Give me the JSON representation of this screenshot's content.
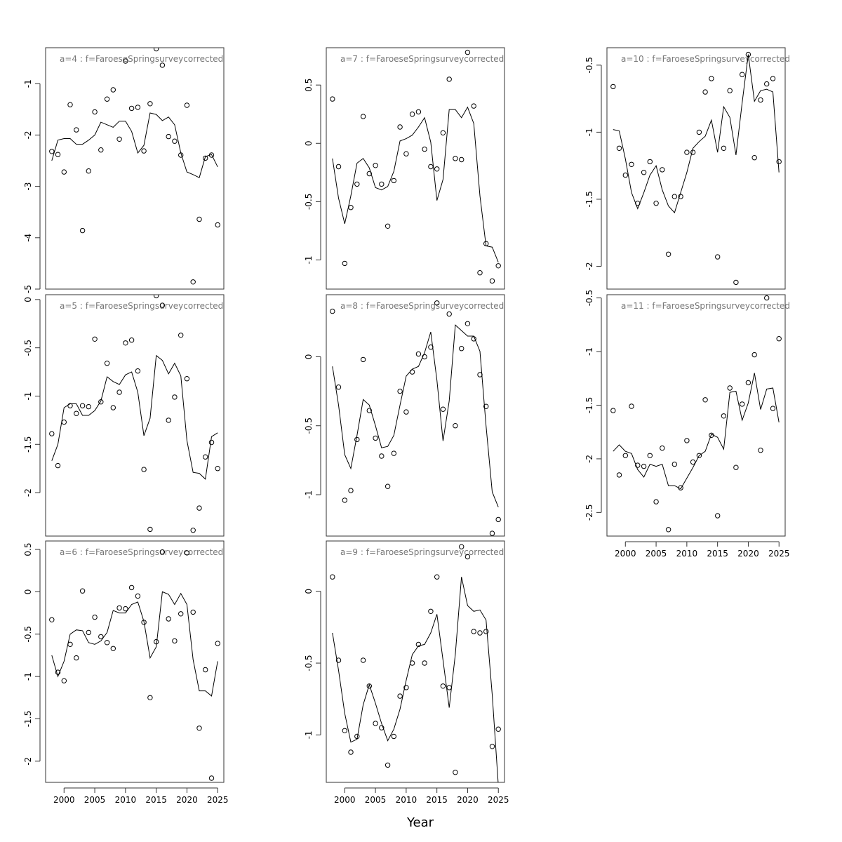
{
  "xlabel": "Year",
  "chart_data": [
    {
      "type": "line",
      "title": "a=4  :  f=FaroeseSpringsurveycorrected",
      "xlim": [
        1997,
        2026
      ],
      "ylim": [
        -5.0,
        -0.3
      ],
      "xticks": [
        2000,
        2005,
        2010,
        2015,
        2020,
        2025
      ],
      "yticks": [
        -5,
        -4,
        -3,
        -2,
        -1
      ],
      "fitted": {
        "x": [
          1998,
          1999,
          2000,
          2001,
          2002,
          2003,
          2004,
          2005,
          2006,
          2007,
          2008,
          2009,
          2010,
          2011,
          2012,
          2013,
          2014,
          2015,
          2016,
          2017,
          2018,
          2019,
          2020,
          2021,
          2022,
          2023,
          2024,
          2025
        ],
        "y": [
          -2.5,
          -2.1,
          -2.07,
          -2.07,
          -2.18,
          -2.18,
          -2.1,
          -2.0,
          -1.75,
          -1.8,
          -1.85,
          -1.73,
          -1.73,
          -1.93,
          -2.35,
          -2.2,
          -1.57,
          -1.6,
          -1.72,
          -1.65,
          -1.8,
          -2.35,
          -2.72,
          -2.77,
          -2.83,
          -2.42,
          -2.38,
          -2.62
        ]
      },
      "observed": {
        "x": [
          1998,
          1999,
          2000,
          2001,
          2002,
          2003,
          2004,
          2005,
          2006,
          2007,
          2008,
          2009,
          2010,
          2011,
          2012,
          2013,
          2014,
          2015,
          2016,
          2017,
          2018,
          2019,
          2020,
          2021,
          2022,
          2023,
          2024,
          2025
        ],
        "y": [
          -2.32,
          -2.38,
          -2.72,
          -1.41,
          -1.9,
          -3.86,
          -2.7,
          -1.55,
          -2.29,
          -1.3,
          -1.12,
          -2.08,
          -0.56,
          -1.48,
          -1.46,
          -2.31,
          -1.39,
          -0.32,
          -0.64,
          -2.03,
          -2.12,
          -2.39,
          -1.42,
          -4.86,
          -3.64,
          -2.45,
          -2.39,
          -3.75
        ]
      }
    },
    {
      "type": "line",
      "title": "a=5  :  f=FaroeseSpringsurveycorrected",
      "xlim": [
        1997,
        2026
      ],
      "ylim": [
        -2.45,
        0.05
      ],
      "xticks": [
        2000,
        2005,
        2010,
        2015,
        2020,
        2025
      ],
      "yticks": [
        -2.0,
        -1.5,
        -1.0,
        -0.5,
        0.0
      ],
      "fitted": {
        "x": [
          1998,
          1999,
          2000,
          2001,
          2002,
          2003,
          2004,
          2005,
          2006,
          2007,
          2008,
          2009,
          2010,
          2011,
          2012,
          2013,
          2014,
          2015,
          2016,
          2017,
          2018,
          2019,
          2020,
          2021,
          2022,
          2023,
          2024,
          2025
        ],
        "y": [
          -1.67,
          -1.5,
          -1.12,
          -1.08,
          -1.08,
          -1.2,
          -1.2,
          -1.15,
          -1.05,
          -0.8,
          -0.85,
          -0.88,
          -0.78,
          -0.75,
          -0.96,
          -1.41,
          -1.23,
          -0.58,
          -0.63,
          -0.77,
          -0.66,
          -0.79,
          -1.46,
          -1.79,
          -1.8,
          -1.86,
          -1.42,
          -1.38
        ]
      },
      "observed": {
        "x": [
          1998,
          1999,
          2000,
          2001,
          2002,
          2003,
          2004,
          2005,
          2006,
          2007,
          2008,
          2009,
          2010,
          2011,
          2012,
          2013,
          2014,
          2015,
          2016,
          2017,
          2018,
          2019,
          2020,
          2021,
          2022,
          2023,
          2024,
          2025
        ],
        "y": [
          -1.39,
          -1.72,
          -1.27,
          -1.1,
          -1.18,
          -1.1,
          -1.11,
          -0.41,
          -1.06,
          -0.66,
          -1.12,
          -0.96,
          -0.45,
          -0.42,
          -0.74,
          -1.76,
          -2.38,
          0.04,
          -0.06,
          -1.25,
          -1.01,
          -0.37,
          -0.82,
          -2.39,
          -2.16,
          -1.63,
          -1.48,
          -1.75
        ]
      }
    },
    {
      "type": "line",
      "title": "a=6  :  f=FaroeseSpringsurveycorrected",
      "xlim": [
        1997,
        2026
      ],
      "ylim": [
        -2.25,
        0.6
      ],
      "xticks": [
        2000,
        2005,
        2010,
        2015,
        2020,
        2025
      ],
      "yticks": [
        -2.0,
        -1.5,
        -1.0,
        -0.5,
        0.0,
        0.5
      ],
      "fitted": {
        "x": [
          1998,
          1999,
          2000,
          2001,
          2002,
          2003,
          2004,
          2005,
          2006,
          2007,
          2008,
          2009,
          2010,
          2011,
          2012,
          2013,
          2014,
          2015,
          2016,
          2017,
          2018,
          2019,
          2020,
          2021,
          2022,
          2023,
          2024,
          2025
        ],
        "y": [
          -0.75,
          -1.0,
          -0.82,
          -0.5,
          -0.45,
          -0.46,
          -0.6,
          -0.62,
          -0.58,
          -0.48,
          -0.22,
          -0.25,
          -0.25,
          -0.15,
          -0.12,
          -0.35,
          -0.78,
          -0.65,
          0.0,
          -0.03,
          -0.15,
          -0.02,
          -0.15,
          -0.8,
          -1.17,
          -1.17,
          -1.23,
          -0.82
        ]
      },
      "observed": {
        "x": [
          1998,
          1999,
          2000,
          2001,
          2002,
          2003,
          2004,
          2005,
          2006,
          2007,
          2008,
          2009,
          2010,
          2011,
          2012,
          2013,
          2014,
          2015,
          2016,
          2017,
          2018,
          2019,
          2020,
          2021,
          2022,
          2023,
          2024,
          2025
        ],
        "y": [
          -0.33,
          -0.95,
          -1.05,
          -0.62,
          -0.78,
          0.01,
          -0.48,
          -0.3,
          -0.53,
          -0.6,
          -0.67,
          -0.19,
          -0.2,
          0.05,
          -0.05,
          -0.36,
          -1.25,
          -0.59,
          0.47,
          -0.32,
          -0.58,
          -0.26,
          0.46,
          -0.24,
          -1.61,
          -0.92,
          -2.2,
          -0.61
        ]
      }
    },
    {
      "type": "line",
      "title": "a=7  :  f=FaroeseSpringsurveycorrected",
      "xlim": [
        1997,
        2026
      ],
      "ylim": [
        -1.25,
        0.82
      ],
      "xticks": [
        2000,
        2005,
        2010,
        2015,
        2020,
        2025
      ],
      "yticks": [
        -1.0,
        -0.5,
        0.0,
        0.5
      ],
      "fitted": {
        "x": [
          1998,
          1999,
          2000,
          2001,
          2002,
          2003,
          2004,
          2005,
          2006,
          2007,
          2008,
          2009,
          2010,
          2011,
          2012,
          2013,
          2014,
          2015,
          2016,
          2017,
          2018,
          2019,
          2020,
          2021,
          2022,
          2023,
          2024,
          2025
        ],
        "y": [
          -0.13,
          -0.47,
          -0.69,
          -0.45,
          -0.17,
          -0.13,
          -0.21,
          -0.38,
          -0.4,
          -0.37,
          -0.24,
          0.02,
          0.04,
          0.07,
          0.14,
          0.22,
          0.01,
          -0.49,
          -0.31,
          0.29,
          0.29,
          0.22,
          0.31,
          0.17,
          -0.45,
          -0.88,
          -0.89,
          -1.02
        ]
      },
      "observed": {
        "x": [
          1998,
          1999,
          2000,
          2001,
          2002,
          2003,
          2004,
          2005,
          2006,
          2007,
          2008,
          2009,
          2010,
          2011,
          2012,
          2013,
          2014,
          2015,
          2016,
          2017,
          2018,
          2019,
          2020,
          2021,
          2022,
          2023,
          2024,
          2025
        ],
        "y": [
          0.38,
          -0.2,
          -1.03,
          -0.55,
          -0.35,
          0.23,
          -0.26,
          -0.19,
          -0.35,
          -0.71,
          -0.32,
          0.14,
          -0.09,
          0.25,
          0.27,
          -0.05,
          -0.2,
          -0.22,
          0.09,
          0.55,
          -0.13,
          -0.14,
          0.78,
          0.32,
          -1.11,
          -0.86,
          -1.18,
          -1.05
        ]
      }
    },
    {
      "type": "line",
      "title": "a=8  :  f=FaroeseSpringsurveycorrected",
      "xlim": [
        1997,
        2026
      ],
      "ylim": [
        -1.3,
        0.45
      ],
      "xticks": [
        2000,
        2005,
        2010,
        2015,
        2020,
        2025
      ],
      "yticks": [
        -1.0,
        -0.5,
        0.0
      ],
      "fitted": {
        "x": [
          1998,
          1999,
          2000,
          2001,
          2002,
          2003,
          2004,
          2005,
          2006,
          2007,
          2008,
          2009,
          2010,
          2011,
          2012,
          2013,
          2014,
          2015,
          2016,
          2017,
          2018,
          2019,
          2020,
          2021,
          2022,
          2023,
          2024,
          2025
        ],
        "y": [
          -0.07,
          -0.35,
          -0.71,
          -0.81,
          -0.57,
          -0.31,
          -0.35,
          -0.5,
          -0.66,
          -0.65,
          -0.57,
          -0.35,
          -0.14,
          -0.09,
          -0.07,
          0.03,
          0.18,
          -0.17,
          -0.61,
          -0.32,
          0.23,
          0.19,
          0.15,
          0.15,
          0.04,
          -0.5,
          -0.98,
          -1.09
        ]
      },
      "observed": {
        "x": [
          1998,
          1999,
          2000,
          2001,
          2002,
          2003,
          2004,
          2005,
          2006,
          2007,
          2008,
          2009,
          2010,
          2011,
          2012,
          2013,
          2014,
          2015,
          2016,
          2017,
          2018,
          2019,
          2020,
          2021,
          2022,
          2023,
          2024,
          2025
        ],
        "y": [
          0.33,
          -0.22,
          -1.04,
          -0.97,
          -0.6,
          -0.02,
          -0.39,
          -0.59,
          -0.72,
          -0.94,
          -0.7,
          -0.25,
          -0.4,
          -0.11,
          0.02,
          0.0,
          0.07,
          0.39,
          -0.38,
          0.31,
          -0.5,
          0.06,
          0.24,
          0.13,
          -0.13,
          -0.36,
          -1.28,
          -1.18
        ]
      }
    },
    {
      "type": "line",
      "title": "a=9  :  f=FaroeseSpringsurveycorrected",
      "xlim": [
        1997,
        2026
      ],
      "ylim": [
        -1.33,
        0.35
      ],
      "xticks": [
        2000,
        2005,
        2010,
        2015,
        2020,
        2025
      ],
      "yticks": [
        -1.0,
        -0.5,
        0.0
      ],
      "fitted": {
        "x": [
          1998,
          1999,
          2000,
          2001,
          2002,
          2003,
          2004,
          2005,
          2006,
          2007,
          2008,
          2009,
          2010,
          2011,
          2012,
          2013,
          2014,
          2015,
          2016,
          2017,
          2018,
          2019,
          2020,
          2021,
          2022,
          2023,
          2024,
          2025
        ],
        "y": [
          -0.29,
          -0.55,
          -0.85,
          -1.05,
          -1.03,
          -0.79,
          -0.65,
          -0.78,
          -0.92,
          -1.04,
          -0.96,
          -0.82,
          -0.62,
          -0.44,
          -0.38,
          -0.37,
          -0.29,
          -0.16,
          -0.48,
          -0.81,
          -0.44,
          0.1,
          -0.1,
          -0.14,
          -0.13,
          -0.2,
          -0.72,
          -1.35
        ]
      },
      "observed": {
        "x": [
          1998,
          1999,
          2000,
          2001,
          2002,
          2003,
          2004,
          2005,
          2006,
          2007,
          2008,
          2009,
          2010,
          2011,
          2012,
          2013,
          2014,
          2015,
          2016,
          2017,
          2018,
          2019,
          2020,
          2021,
          2022,
          2023,
          2024,
          2025
        ],
        "y": [
          0.1,
          -0.48,
          -0.97,
          -1.12,
          -1.01,
          -0.48,
          -0.66,
          -0.92,
          -0.95,
          -1.21,
          -1.01,
          -0.73,
          -0.67,
          -0.5,
          -0.37,
          -0.5,
          -0.14,
          0.1,
          -0.66,
          -0.67,
          -1.26,
          0.31,
          0.24,
          -0.28,
          -0.29,
          -0.28,
          -1.08,
          -0.96
        ]
      }
    },
    {
      "type": "line",
      "title": "a=10  :  f=FaroeseSpringsurveycorrected",
      "xlim": [
        1997,
        2026
      ],
      "ylim": [
        -2.17,
        -0.37
      ],
      "xticks": [
        2000,
        2005,
        2010,
        2015,
        2020,
        2025
      ],
      "yticks": [
        -2.0,
        -1.5,
        -1.0,
        -0.5
      ],
      "fitted": {
        "x": [
          1998,
          1999,
          2000,
          2001,
          2002,
          2003,
          2004,
          2005,
          2006,
          2007,
          2008,
          2009,
          2010,
          2011,
          2012,
          2013,
          2014,
          2015,
          2016,
          2017,
          2018,
          2019,
          2020,
          2021,
          2022,
          2023,
          2024,
          2025
        ],
        "y": [
          -0.98,
          -0.99,
          -1.2,
          -1.45,
          -1.57,
          -1.45,
          -1.32,
          -1.25,
          -1.43,
          -1.55,
          -1.6,
          -1.45,
          -1.3,
          -1.12,
          -1.07,
          -1.03,
          -0.91,
          -1.15,
          -0.81,
          -0.89,
          -1.17,
          -0.78,
          -0.42,
          -0.77,
          -0.69,
          -0.68,
          -0.7,
          -1.3
        ]
      },
      "observed": {
        "x": [
          1998,
          1999,
          2000,
          2001,
          2002,
          2003,
          2004,
          2005,
          2006,
          2007,
          2008,
          2009,
          2010,
          2011,
          2012,
          2013,
          2014,
          2015,
          2016,
          2017,
          2018,
          2019,
          2020,
          2021,
          2022,
          2023,
          2024,
          2025
        ],
        "y": [
          -0.66,
          -1.12,
          -1.32,
          -1.24,
          -1.53,
          -1.3,
          -1.22,
          -1.53,
          -1.28,
          -1.91,
          -1.48,
          -1.48,
          -1.15,
          -1.15,
          -1.0,
          -0.7,
          -0.6,
          -1.93,
          -1.12,
          -0.69,
          -2.12,
          -0.57,
          -0.42,
          -1.19,
          -0.76,
          -0.64,
          -0.6,
          -1.22
        ]
      }
    },
    {
      "type": "line",
      "title": "a=11  :  f=FaroeseSpringsurveycorrected",
      "xlim": [
        1997,
        2026
      ],
      "ylim": [
        -2.72,
        -0.47
      ],
      "xticks": [
        2000,
        2005,
        2010,
        2015,
        2020,
        2025
      ],
      "yticks": [
        -2.5,
        -2.0,
        -1.5,
        -1.0,
        -0.5
      ],
      "fitted": {
        "x": [
          1998,
          1999,
          2000,
          2001,
          2002,
          2003,
          2004,
          2005,
          2006,
          2007,
          2008,
          2009,
          2010,
          2011,
          2012,
          2013,
          2014,
          2015,
          2016,
          2017,
          2018,
          2019,
          2020,
          2021,
          2022,
          2023,
          2024,
          2025
        ],
        "y": [
          -1.93,
          -1.87,
          -1.93,
          -1.95,
          -2.1,
          -2.17,
          -2.05,
          -2.07,
          -2.05,
          -2.25,
          -2.25,
          -2.28,
          -2.18,
          -2.08,
          -1.97,
          -1.93,
          -1.77,
          -1.8,
          -1.91,
          -1.38,
          -1.37,
          -1.64,
          -1.48,
          -1.2,
          -1.54,
          -1.35,
          -1.34,
          -1.66
        ]
      },
      "observed": {
        "x": [
          1998,
          1999,
          2000,
          2001,
          2002,
          2003,
          2004,
          2005,
          2006,
          2007,
          2008,
          2009,
          2010,
          2011,
          2012,
          2013,
          2014,
          2015,
          2016,
          2017,
          2018,
          2019,
          2020,
          2021,
          2022,
          2023,
          2024,
          2025
        ],
        "y": [
          -1.55,
          -2.15,
          -1.97,
          -1.51,
          -2.06,
          -2.07,
          -1.97,
          -2.4,
          -1.9,
          -2.66,
          -2.05,
          -2.27,
          -1.83,
          -2.03,
          -1.97,
          -1.45,
          -1.78,
          -2.53,
          -1.6,
          -1.34,
          -2.08,
          -1.49,
          -1.29,
          -1.03,
          -1.92,
          -0.5,
          -1.53,
          -0.88
        ]
      }
    }
  ]
}
